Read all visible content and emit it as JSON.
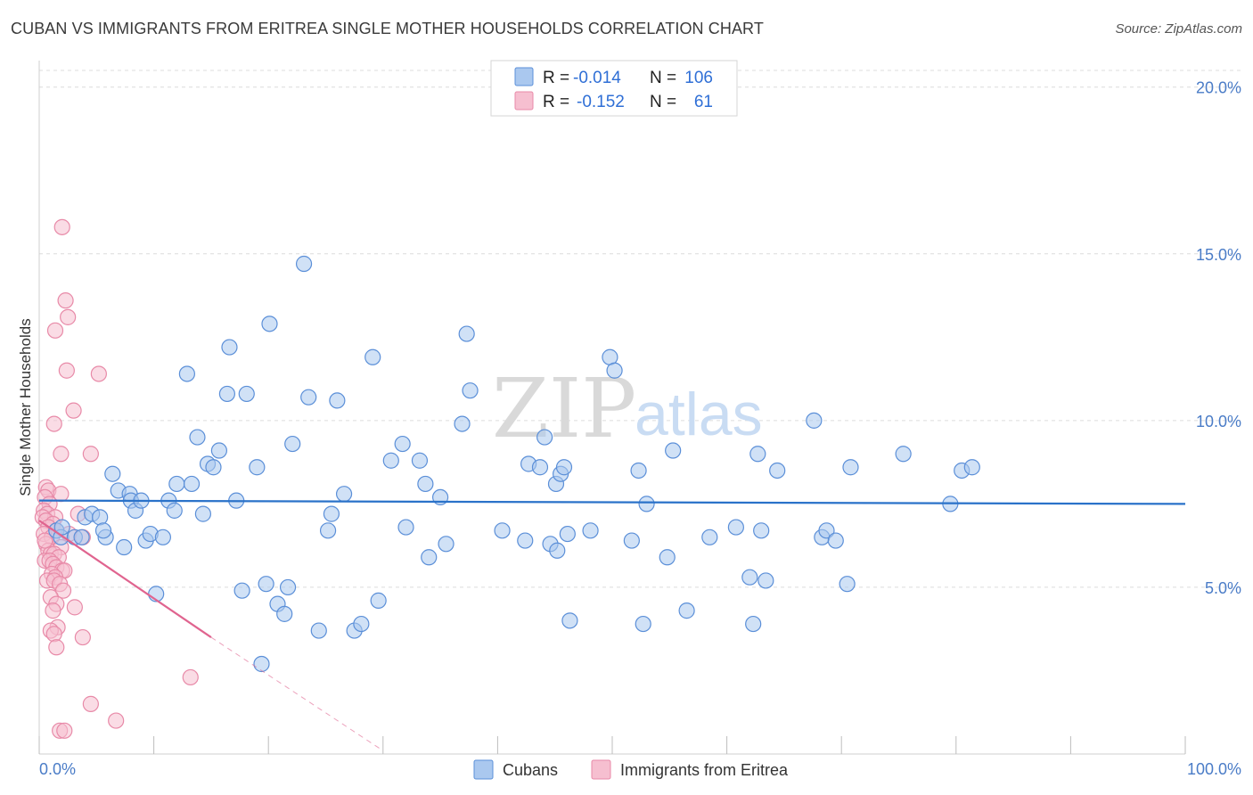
{
  "title": "CUBAN VS IMMIGRANTS FROM ERITREA SINGLE MOTHER HOUSEHOLDS CORRELATION CHART",
  "source": "Source: ZipAtlas.com",
  "watermark": {
    "zip": "ZIP",
    "atlas": "atlas"
  },
  "colors": {
    "cubans_fill": "#aac8ef",
    "cubans_stroke": "#5b8fd8",
    "cubans_line": "#2a72c9",
    "eritrea_fill": "#f6bfd0",
    "eritrea_stroke": "#e88aa8",
    "eritrea_line": "#e0648f",
    "grid": "#dcdcdc",
    "tick_label": "#4a7cc7"
  },
  "legend": {
    "rows": [
      {
        "r_label": "R =",
        "r_value": "-0.014",
        "n_label": "N =",
        "n_value": "106"
      },
      {
        "r_label": "R =",
        "r_value": "-0.152",
        "n_label": "N =",
        "n_value": "61"
      }
    ]
  },
  "bottom_legend": {
    "cubans": "Cubans",
    "eritrea": "Immigrants from Eritrea"
  },
  "chart_data": {
    "type": "scatter",
    "title": "CUBAN VS IMMIGRANTS FROM ERITREA SINGLE MOTHER HOUSEHOLDS CORRELATION CHART",
    "xlabel": "",
    "ylabel": "Single Mother Households",
    "xlim": [
      0,
      100
    ],
    "ylim": [
      0,
      20.5
    ],
    "x_tick_labels": {
      "left": "0.0%",
      "right": "100.0%"
    },
    "y_ticks": [
      {
        "value": 5,
        "label": "5.0%"
      },
      {
        "value": 10,
        "label": "10.0%"
      },
      {
        "value": 15,
        "label": "15.0%"
      },
      {
        "value": 20,
        "label": "20.0%"
      }
    ],
    "series": [
      {
        "name": "Cubans",
        "r": -0.014,
        "n": 106,
        "trend": {
          "x0": 0,
          "y0": 7.6,
          "x1": 100,
          "y1": 7.5,
          "dashed_to": null
        },
        "points": [
          [
            1.5,
            6.7
          ],
          [
            1.9,
            6.5
          ],
          [
            2.0,
            6.8
          ],
          [
            3.1,
            6.5
          ],
          [
            4.0,
            7.1
          ],
          [
            4.6,
            7.2
          ],
          [
            5.3,
            7.1
          ],
          [
            5.8,
            6.5
          ],
          [
            5.6,
            6.7
          ],
          [
            3.7,
            6.5
          ],
          [
            6.4,
            8.4
          ],
          [
            6.9,
            7.9
          ],
          [
            7.4,
            6.2
          ],
          [
            7.9,
            7.8
          ],
          [
            8.0,
            7.6
          ],
          [
            8.4,
            7.3
          ],
          [
            8.9,
            7.6
          ],
          [
            9.3,
            6.4
          ],
          [
            9.7,
            6.6
          ],
          [
            10.8,
            6.5
          ],
          [
            10.2,
            4.8
          ],
          [
            11.3,
            7.6
          ],
          [
            11.8,
            7.3
          ],
          [
            12.0,
            8.1
          ],
          [
            12.9,
            11.4
          ],
          [
            13.3,
            8.1
          ],
          [
            13.8,
            9.5
          ],
          [
            14.3,
            7.2
          ],
          [
            14.7,
            8.7
          ],
          [
            15.2,
            8.6
          ],
          [
            15.7,
            9.1
          ],
          [
            16.4,
            10.8
          ],
          [
            16.6,
            12.2
          ],
          [
            17.2,
            7.6
          ],
          [
            17.7,
            4.9
          ],
          [
            18.1,
            10.8
          ],
          [
            19.0,
            8.6
          ],
          [
            19.4,
            2.7
          ],
          [
            19.8,
            5.1
          ],
          [
            20.1,
            12.9
          ],
          [
            20.8,
            4.5
          ],
          [
            21.4,
            4.2
          ],
          [
            21.7,
            5.0
          ],
          [
            22.1,
            9.3
          ],
          [
            23.1,
            14.7
          ],
          [
            23.5,
            10.7
          ],
          [
            24.4,
            3.7
          ],
          [
            25.2,
            6.7
          ],
          [
            25.5,
            7.2
          ],
          [
            26.0,
            10.6
          ],
          [
            26.6,
            7.8
          ],
          [
            27.5,
            3.7
          ],
          [
            28.1,
            3.9
          ],
          [
            29.1,
            11.9
          ],
          [
            29.6,
            4.6
          ],
          [
            30.7,
            8.8
          ],
          [
            31.7,
            9.3
          ],
          [
            32.0,
            6.8
          ],
          [
            33.2,
            8.8
          ],
          [
            33.7,
            8.1
          ],
          [
            34.0,
            5.9
          ],
          [
            35.0,
            7.7
          ],
          [
            35.5,
            6.3
          ],
          [
            36.9,
            9.9
          ],
          [
            37.3,
            12.6
          ],
          [
            37.6,
            10.9
          ],
          [
            40.4,
            6.7
          ],
          [
            42.7,
            8.7
          ],
          [
            42.4,
            6.4
          ],
          [
            43.7,
            8.6
          ],
          [
            44.1,
            9.5
          ],
          [
            44.6,
            6.3
          ],
          [
            45.1,
            8.1
          ],
          [
            45.5,
            8.4
          ],
          [
            46.1,
            6.6
          ],
          [
            46.3,
            4.0
          ],
          [
            48.1,
            6.7
          ],
          [
            49.8,
            11.9
          ],
          [
            50.2,
            11.5
          ],
          [
            51.7,
            6.4
          ],
          [
            52.3,
            8.5
          ],
          [
            52.7,
            3.9
          ],
          [
            53.0,
            7.5
          ],
          [
            54.8,
            5.9
          ],
          [
            55.3,
            9.1
          ],
          [
            56.5,
            4.3
          ],
          [
            58.5,
            6.5
          ],
          [
            60.8,
            6.8
          ],
          [
            62.0,
            5.3
          ],
          [
            62.3,
            3.9
          ],
          [
            62.7,
            9.0
          ],
          [
            63.0,
            6.7
          ],
          [
            63.4,
            5.2
          ],
          [
            64.4,
            8.5
          ],
          [
            67.6,
            10.0
          ],
          [
            68.3,
            6.5
          ],
          [
            68.7,
            6.7
          ],
          [
            69.5,
            6.4
          ],
          [
            70.5,
            5.1
          ],
          [
            70.8,
            8.6
          ],
          [
            75.4,
            9.0
          ],
          [
            79.5,
            7.5
          ],
          [
            80.5,
            8.5
          ],
          [
            81.4,
            8.6
          ],
          [
            45.8,
            8.6
          ],
          [
            45.2,
            6.1
          ]
        ]
      },
      {
        "name": "Immigrants from Eritrea",
        "r": -0.152,
        "n": 61,
        "trend": {
          "x0": 0,
          "y0": 7.0,
          "x1": 15.0,
          "y1": 3.5,
          "dashed_to": {
            "x": 30.0,
            "y": 0.1
          }
        },
        "points": [
          [
            2.0,
            15.8
          ],
          [
            2.3,
            13.6
          ],
          [
            2.5,
            13.1
          ],
          [
            1.4,
            12.7
          ],
          [
            2.4,
            11.5
          ],
          [
            5.2,
            11.4
          ],
          [
            3.0,
            10.3
          ],
          [
            1.3,
            9.9
          ],
          [
            1.9,
            9.0
          ],
          [
            4.5,
            9.0
          ],
          [
            0.6,
            8.0
          ],
          [
            0.8,
            7.9
          ],
          [
            1.9,
            7.8
          ],
          [
            0.5,
            7.7
          ],
          [
            0.9,
            7.5
          ],
          [
            0.4,
            7.3
          ],
          [
            0.7,
            7.2
          ],
          [
            1.4,
            7.1
          ],
          [
            0.3,
            7.1
          ],
          [
            0.6,
            7.0
          ],
          [
            1.2,
            6.9
          ],
          [
            0.8,
            6.8
          ],
          [
            1.5,
            6.7
          ],
          [
            0.4,
            6.6
          ],
          [
            2.6,
            6.6
          ],
          [
            1.1,
            6.5
          ],
          [
            3.4,
            7.2
          ],
          [
            3.8,
            6.5
          ],
          [
            0.6,
            6.3
          ],
          [
            1.9,
            6.2
          ],
          [
            0.8,
            6.1
          ],
          [
            1.0,
            6.0
          ],
          [
            1.3,
            6.0
          ],
          [
            1.7,
            5.9
          ],
          [
            0.5,
            5.8
          ],
          [
            0.9,
            5.8
          ],
          [
            1.2,
            5.7
          ],
          [
            1.5,
            5.6
          ],
          [
            2.0,
            5.5
          ],
          [
            2.2,
            5.5
          ],
          [
            1.1,
            5.4
          ],
          [
            1.4,
            5.3
          ],
          [
            0.7,
            5.2
          ],
          [
            1.3,
            5.2
          ],
          [
            1.8,
            5.1
          ],
          [
            2.1,
            4.9
          ],
          [
            1.0,
            4.7
          ],
          [
            1.5,
            4.5
          ],
          [
            3.1,
            4.4
          ],
          [
            1.2,
            4.3
          ],
          [
            1.6,
            3.8
          ],
          [
            1.0,
            3.7
          ],
          [
            1.3,
            3.6
          ],
          [
            3.8,
            3.5
          ],
          [
            1.5,
            3.2
          ],
          [
            13.2,
            2.3
          ],
          [
            4.5,
            1.5
          ],
          [
            6.7,
            1.0
          ],
          [
            1.8,
            0.7
          ],
          [
            2.2,
            0.7
          ],
          [
            0.5,
            6.4
          ]
        ]
      }
    ],
    "legend_position": "top-center"
  }
}
